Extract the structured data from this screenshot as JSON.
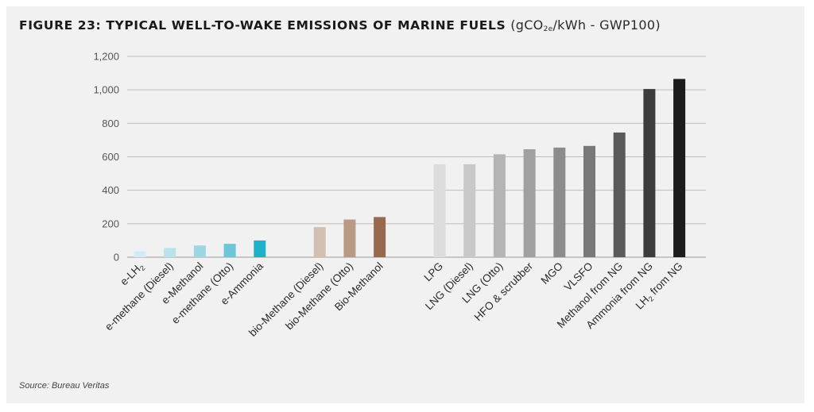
{
  "title": {
    "main": "FIGURE 23: TYPICAL WELL-TO-WAKE EMISSIONS OF MARINE FUELS",
    "unit_pre": "(gCO",
    "unit_sub": "2e",
    "unit_post": "/kWh - GWP100)"
  },
  "source": "Source: Bureau Veritas",
  "chart_data": {
    "type": "bar",
    "title": "FIGURE 23: TYPICAL WELL-TO-WAKE EMISSIONS OF MARINE FUELS (gCO2e/kWh - GWP100)",
    "xlabel": "",
    "ylabel": "",
    "ylim": [
      0,
      1200
    ],
    "yticks": [
      0,
      200,
      400,
      600,
      800,
      1000,
      1200
    ],
    "ytick_labels": [
      "0",
      "200",
      "400",
      "600",
      "800",
      "1,000",
      "1,200"
    ],
    "grid": true,
    "legend": "none",
    "groups": [
      {
        "categories": [
          "e-LH2",
          "e-methane (Diesel)",
          "e-Methanol",
          "e-methane (Otto)",
          "e-Ammonia"
        ]
      },
      {
        "categories": [
          "bio-Methane (Diesel)",
          "bio-Methane (Otto)",
          "Bio-Methanol"
        ]
      },
      {
        "categories": [
          "LPG",
          "LNG (Diesel)",
          "LNG (Otto)",
          "HFO & scrubber",
          "MGO",
          "VLSFO",
          "Methanol from NG",
          "Ammonia from NG",
          "LH2 from NG"
        ]
      }
    ],
    "categories": [
      "e-LH2",
      "e-methane (Diesel)",
      "e-Methanol",
      "e-methane (Otto)",
      "e-Ammonia",
      "bio-Methane (Diesel)",
      "bio-Methane (Otto)",
      "Bio-Methanol",
      "LPG",
      "LNG (Diesel)",
      "LNG (Otto)",
      "HFO & scrubber",
      "MGO",
      "VLSFO",
      "Methanol from NG",
      "Ammonia from NG",
      "LH2 from NG"
    ],
    "values": [
      35,
      55,
      70,
      80,
      100,
      180,
      225,
      240,
      555,
      555,
      615,
      645,
      655,
      665,
      745,
      1005,
      1065
    ],
    "colors": [
      "#d3ecf2",
      "#b9e2eb",
      "#9dd6e3",
      "#6cc6d7",
      "#1eb1c7",
      "#d3bfb1",
      "#b99a85",
      "#976a50",
      "#dcdcdc",
      "#c8c8c8",
      "#b4b4b4",
      "#a0a0a0",
      "#8c8c8c",
      "#787878",
      "#5a5a5a",
      "#3c3c3c",
      "#1c1c1c"
    ]
  }
}
